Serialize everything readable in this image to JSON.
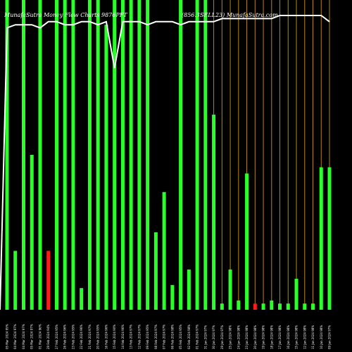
{
  "header": {
    "left": "MunafaSutra  Money Flow Charts 9876PFT",
    "right": "(856.3SELL23) MunafaSutra.com"
  },
  "colors": {
    "background": "#000000",
    "up_bar": "#2aff2a",
    "down_bar": "#ff1a1a",
    "guide_line": "#b8860b",
    "price_line": "#ffffff",
    "text": "#ffffff"
  },
  "chart_data": {
    "type": "bar",
    "title": "",
    "xlabel": "",
    "ylabel": "",
    "ylim": [
      0,
      100
    ],
    "grid": false,
    "legend": "none",
    "categories": [
      "05 Mar 2024 95%",
      "04 Mar 2024 97%",
      "04 Mar 2024 97%",
      "05 Mar 2024 97%",
      "01 Mar 2024 96%",
      "29 Feb 2024 94%",
      "27 Feb 2024 95%",
      "26 Feb 2024 96%",
      "23 Feb 2024 95%",
      "22 Feb 2024 96%",
      "21 Feb 2024 97%",
      "20 Feb 2024 95%",
      "16 Feb 2024 96%",
      "15 Feb 2024 90%",
      "14 Feb 2024 96%",
      "13 Feb 2024 97%",
      "12 Feb 2024 97%",
      "09 Feb 2024 95%",
      "08 Feb 2024 97%",
      "07 Feb 2024 97%",
      "06 Feb 2024 98%",
      "05 Feb 2024 95%",
      "02 Feb 2024 98%",
      "01 Feb 2024 97%",
      "31 Jan 2024 97%",
      "30 Jan 2024 97%",
      "29 Jan 2024 97%",
      "25 Jan 2024 98%",
      "24 Jan 2024 98%",
      "23 Jan 2024 98%",
      "20 Jan 2024 98%",
      "19 Jan 2024 98%",
      "18 Jan 2024 98%",
      "17 Jan 2024 98%",
      "16 Jan 2024 98%",
      "15 Jan 2024 98%",
      "12 Jan 2024 98%",
      "11 Jan 2024 98%",
      "10 Jan 2024 98%",
      "09 Jan 2024 97%"
    ],
    "values": [
      100,
      19,
      100,
      50,
      100,
      19,
      100,
      100,
      100,
      7,
      100,
      100,
      92,
      100,
      100,
      100,
      100,
      100,
      25,
      38,
      8,
      100,
      13,
      100,
      100,
      63,
      2,
      13,
      3,
      44,
      2,
      2,
      3,
      2,
      2,
      10,
      2,
      2,
      46,
      46
    ],
    "directions": [
      "up",
      "up",
      "up",
      "up",
      "up",
      "down",
      "up",
      "up",
      "up",
      "up",
      "up",
      "up",
      "up",
      "up",
      "up",
      "up",
      "up",
      "up",
      "up",
      "up",
      "up",
      "up",
      "up",
      "up",
      "up",
      "up",
      "up",
      "up",
      "up",
      "up",
      "down",
      "up",
      "up",
      "up",
      "up",
      "up",
      "up",
      "up",
      "up",
      "up"
    ],
    "guides": [
      false,
      false,
      false,
      false,
      false,
      false,
      false,
      false,
      false,
      false,
      false,
      false,
      false,
      false,
      false,
      false,
      false,
      false,
      false,
      false,
      false,
      false,
      false,
      false,
      false,
      true,
      true,
      true,
      true,
      true,
      true,
      true,
      true,
      true,
      true,
      true,
      true,
      true,
      true,
      true
    ],
    "price_line": [
      91,
      92,
      92,
      92,
      91,
      93,
      93,
      92,
      92,
      93,
      93,
      92,
      93,
      78,
      93,
      93,
      93,
      92,
      93,
      93,
      93,
      92,
      93,
      93,
      93,
      93,
      94,
      94,
      94,
      94,
      94,
      94,
      94,
      95,
      95,
      95,
      95,
      95,
      95,
      93
    ]
  }
}
